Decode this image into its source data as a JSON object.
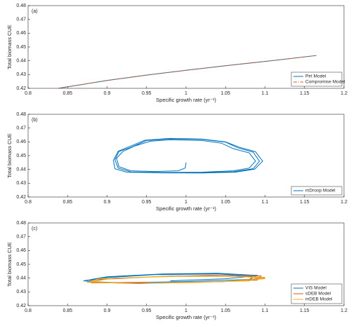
{
  "chart_data": [
    {
      "type": "line",
      "annotation": "(a)",
      "x_label": "Specific growth rate  (yr⁻¹)",
      "y_label": "Total biomass CUE",
      "xlim": [
        0.8,
        1.2
      ],
      "xticks": [
        0.8,
        0.85,
        0.9,
        0.95,
        1,
        1.05,
        1.1,
        1.15,
        1.2
      ],
      "ylim": [
        0.42,
        0.48
      ],
      "yticks": [
        0.42,
        0.43,
        0.44,
        0.45,
        0.46,
        0.47,
        0.48
      ],
      "legend": "lower right",
      "series": [
        {
          "name": "Pirt Model",
          "color": "#0072BD",
          "linestyle": "solid",
          "x": [
            0.838,
            0.9,
            0.95,
            1.0,
            1.05,
            1.1,
            1.165
          ],
          "values": [
            0.42,
            0.4257,
            0.4296,
            0.4331,
            0.4364,
            0.4395,
            0.4438
          ]
        },
        {
          "name": "Compromise Model",
          "color": "#D95319",
          "linestyle": "dashdot",
          "x": [
            0.838,
            0.9,
            0.95,
            1.0,
            1.05,
            1.1,
            1.165
          ],
          "values": [
            0.42,
            0.4257,
            0.4296,
            0.4331,
            0.4364,
            0.4395,
            0.4438
          ]
        }
      ]
    },
    {
      "type": "line",
      "annotation": "(b)",
      "x_label": "Specific growth rate  (yr⁻¹)",
      "y_label": "Total biomass CUE",
      "xlim": [
        0.8,
        1.2
      ],
      "xticks": [
        0.8,
        0.85,
        0.9,
        0.95,
        1,
        1.05,
        1.1,
        1.15,
        1.2
      ],
      "ylim": [
        0.42,
        0.48
      ],
      "yticks": [
        0.42,
        0.43,
        0.44,
        0.45,
        0.46,
        0.47,
        0.48
      ],
      "legend": "lower right",
      "series": [
        {
          "name": "mDroop Model",
          "color": "#0072BD",
          "linestyle": "solid",
          "x": [
            1.0,
            0.999,
            0.99,
            0.96,
            0.93,
            0.915,
            0.912,
            0.92,
            0.935,
            0.955,
            0.98,
            1.02,
            1.045,
            1.06,
            1.08,
            1.088,
            1.08,
            1.06,
            1.02,
            0.97,
            0.93,
            0.914,
            0.91,
            0.915,
            0.93,
            0.95,
            0.98,
            1.02,
            1.05,
            1.065,
            1.085,
            1.093,
            1.085,
            1.06,
            1.02,
            0.97,
            0.925,
            0.91,
            0.908,
            0.914,
            0.928,
            0.948,
            0.98,
            1.02,
            1.05,
            1.068,
            1.088,
            1.097,
            1.087,
            1.062,
            1.02,
            0.97,
            0.93
          ],
          "values": [
            0.445,
            0.441,
            0.439,
            0.4385,
            0.439,
            0.442,
            0.448,
            0.453,
            0.457,
            0.4605,
            0.4615,
            0.461,
            0.459,
            0.455,
            0.452,
            0.446,
            0.441,
            0.439,
            0.438,
            0.4378,
            0.4382,
            0.441,
            0.447,
            0.453,
            0.456,
            0.461,
            0.4622,
            0.4618,
            0.4598,
            0.4558,
            0.4525,
            0.446,
            0.4405,
            0.4383,
            0.4376,
            0.4376,
            0.438,
            0.4405,
            0.4465,
            0.4532,
            0.4565,
            0.4612,
            0.4625,
            0.462,
            0.46,
            0.456,
            0.4528,
            0.446,
            0.4402,
            0.438,
            0.4374,
            0.4375,
            0.438
          ]
        }
      ]
    },
    {
      "type": "line",
      "annotation": "(c)",
      "x_label": "Specific growth rate  (yr⁻¹)",
      "y_label": "Total biomass CUE",
      "xlim": [
        0.8,
        1.2
      ],
      "xticks": [
        0.8,
        0.85,
        0.9,
        0.95,
        1,
        1.05,
        1.1,
        1.15,
        1.2
      ],
      "ylim": [
        0.42,
        0.48
      ],
      "yticks": [
        0.42,
        0.43,
        0.44,
        0.45,
        0.46,
        0.47,
        0.48
      ],
      "legend": "lower right",
      "series": [
        {
          "name": "VIS Model",
          "color": "#0072BD",
          "linestyle": "solid",
          "x": [
            0.9,
            0.87,
            0.9,
            0.97,
            1.04,
            1.09,
            1.08,
            1.0,
            0.92,
            0.875,
            0.89,
            0.96,
            1.04,
            1.085,
            1.05,
            0.98
          ],
          "values": [
            0.437,
            0.438,
            0.441,
            0.443,
            0.4435,
            0.442,
            0.439,
            0.4375,
            0.4365,
            0.4375,
            0.44,
            0.4425,
            0.443,
            0.4415,
            0.4395,
            0.438
          ]
        },
        {
          "name": "sDEB Model",
          "color": "#D95319",
          "linestyle": "solid",
          "x": [
            0.95,
            0.88,
            0.89,
            0.96,
            1.03,
            1.095,
            1.09,
            1.02,
            0.94,
            0.875,
            0.9,
            0.98,
            1.06,
            1.1,
            1.05,
            0.97
          ],
          "values": [
            0.437,
            0.4365,
            0.439,
            0.441,
            0.442,
            0.4415,
            0.4385,
            0.437,
            0.436,
            0.437,
            0.4395,
            0.4415,
            0.4418,
            0.44,
            0.4375,
            0.4365
          ]
        },
        {
          "name": "mDEB Model",
          "color": "#EDB120",
          "linestyle": "solid",
          "x": [
            0.93,
            0.875,
            0.89,
            0.97,
            1.05,
            1.1,
            1.08,
            1.0,
            0.92,
            0.88,
            0.91,
            0.99,
            1.07,
            1.1,
            1.04,
            0.96
          ],
          "values": [
            0.4362,
            0.437,
            0.4395,
            0.4412,
            0.4415,
            0.4405,
            0.438,
            0.4366,
            0.4362,
            0.4375,
            0.44,
            0.4412,
            0.4412,
            0.4395,
            0.4372,
            0.4364
          ]
        }
      ]
    }
  ]
}
